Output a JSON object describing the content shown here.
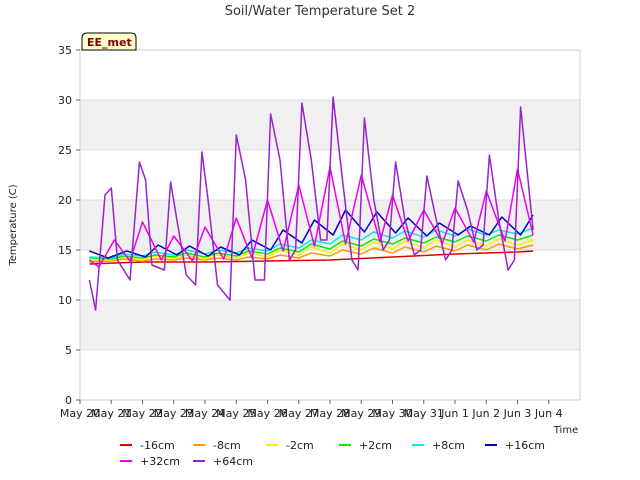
{
  "chart_data": {
    "type": "line",
    "title": "Soil/Water Temperature Set 2",
    "xlabel": "Time",
    "ylabel": "Temperature (C)",
    "ylim": [
      0,
      35
    ],
    "yticks": [
      0,
      5,
      10,
      15,
      20,
      25,
      30,
      35
    ],
    "xticks": [
      "May 20",
      "May 21",
      "May 22",
      "May 23",
      "May 24",
      "May 25",
      "May 26",
      "May 27",
      "May 28",
      "May 29",
      "May 30",
      "May 31",
      "Jun 1",
      "Jun 2",
      "Jun 3",
      "Jun 4"
    ],
    "badge": "EE_met",
    "legend_position": "bottom",
    "grid_bands": true,
    "series": [
      {
        "name": "-16cm",
        "color": "#dd0000",
        "x": [
          0.3,
          2,
          4,
          6,
          8,
          10,
          12,
          14,
          14.5
        ],
        "y": [
          13.6,
          13.8,
          13.8,
          13.9,
          14.0,
          14.3,
          14.6,
          14.8,
          14.9
        ]
      },
      {
        "name": "-8cm",
        "color": "#ff9900",
        "x": [
          0.3,
          1,
          1.4,
          2,
          2.4,
          3,
          3.4,
          4,
          4.4,
          5,
          5.4,
          6,
          6.4,
          7,
          7.4,
          8,
          8.4,
          9,
          9.4,
          10,
          10.4,
          11,
          11.4,
          12,
          12.4,
          13,
          13.4,
          14,
          14.5
        ],
        "y": [
          13.8,
          13.9,
          14.1,
          13.9,
          14.1,
          14.0,
          14.2,
          14.0,
          14.2,
          14.0,
          14.3,
          14.1,
          14.5,
          14.2,
          14.7,
          14.4,
          15.0,
          14.6,
          15.2,
          14.7,
          15.3,
          14.8,
          15.4,
          14.9,
          15.5,
          15.0,
          15.6,
          15.1,
          15.5
        ]
      },
      {
        "name": "-2cm",
        "color": "#ffee00",
        "x": [
          0.3,
          1,
          1.4,
          2,
          2.4,
          3,
          3.4,
          4,
          4.4,
          5,
          5.4,
          6,
          6.4,
          7,
          7.4,
          8,
          8.4,
          9,
          9.4,
          10,
          10.4,
          11,
          11.4,
          12,
          12.4,
          13,
          13.4,
          14,
          14.5
        ],
        "y": [
          14.0,
          14.0,
          14.3,
          14.0,
          14.4,
          14.1,
          14.5,
          14.1,
          14.5,
          14.2,
          14.7,
          14.3,
          15.0,
          14.5,
          15.3,
          14.7,
          15.6,
          15.0,
          15.8,
          15.1,
          15.9,
          15.2,
          16.0,
          15.3,
          16.0,
          15.4,
          16.1,
          15.5,
          16.0
        ]
      },
      {
        "name": "+2cm",
        "color": "#00ee00",
        "x": [
          0.3,
          1,
          1.4,
          2,
          2.4,
          3,
          3.4,
          4,
          4.4,
          5,
          5.4,
          6,
          6.4,
          7,
          7.4,
          8,
          8.4,
          9,
          9.4,
          10,
          10.4,
          11,
          11.4,
          12,
          12.4,
          13,
          13.4,
          14,
          14.5
        ],
        "y": [
          14.2,
          14.1,
          14.4,
          14.2,
          14.5,
          14.3,
          14.7,
          14.3,
          14.7,
          14.4,
          14.9,
          14.6,
          15.2,
          14.8,
          15.6,
          15.1,
          15.9,
          15.4,
          16.1,
          15.6,
          16.2,
          15.7,
          16.3,
          15.8,
          16.4,
          15.9,
          16.5,
          16.0,
          16.5
        ]
      },
      {
        "name": "+8cm",
        "color": "#00eeee",
        "x": [
          0.3,
          1,
          1.4,
          2,
          2.4,
          3,
          3.4,
          4,
          4.4,
          5,
          5.4,
          6,
          6.4,
          7,
          7.4,
          8,
          8.4,
          9,
          9.4,
          10,
          10.4,
          11,
          11.4,
          12,
          12.4,
          13,
          13.4,
          14,
          14.5
        ],
        "y": [
          14.3,
          14.2,
          14.6,
          14.4,
          14.8,
          14.5,
          15.0,
          14.6,
          15.0,
          14.7,
          15.2,
          14.9,
          15.6,
          15.2,
          16.0,
          15.6,
          16.5,
          16.0,
          16.8,
          16.2,
          16.9,
          16.3,
          17.0,
          16.4,
          17.1,
          16.5,
          17.0,
          16.6,
          17.2
        ]
      },
      {
        "name": "+16cm",
        "color": "#0000cc",
        "x": [
          0.3,
          0.9,
          1.5,
          2.1,
          2.5,
          3.1,
          3.5,
          4.1,
          4.5,
          5.1,
          5.5,
          6.1,
          6.5,
          7.1,
          7.5,
          8.1,
          8.5,
          9.1,
          9.5,
          10.1,
          10.5,
          11.1,
          11.5,
          12.1,
          12.5,
          13.1,
          13.5,
          14.1,
          14.5
        ],
        "y": [
          14.9,
          14.2,
          14.9,
          14.3,
          15.5,
          14.5,
          15.4,
          14.4,
          15.3,
          14.5,
          16.0,
          15.0,
          17.0,
          15.7,
          18.0,
          16.5,
          19.0,
          16.8,
          18.8,
          16.7,
          18.2,
          16.4,
          17.7,
          16.5,
          17.4,
          16.5,
          18.3,
          16.5,
          18.5
        ]
      },
      {
        "name": "+32cm",
        "color": "#ee00ee",
        "x": [
          0.3,
          0.6,
          1.1,
          1.6,
          2.0,
          2.6,
          3.0,
          3.6,
          4.0,
          4.6,
          5.0,
          5.5,
          6.0,
          6.5,
          7.0,
          7.5,
          8.0,
          8.5,
          9.0,
          9.6,
          10.0,
          10.5,
          11.0,
          11.6,
          12.0,
          12.6,
          13.0,
          13.6,
          14.0,
          14.5
        ],
        "y": [
          14.0,
          13.3,
          16.0,
          13.9,
          17.8,
          14.0,
          16.4,
          13.9,
          17.3,
          14.1,
          18.2,
          14.2,
          20.0,
          14.9,
          21.5,
          15.4,
          23.3,
          15.6,
          22.5,
          15.8,
          20.5,
          15.9,
          19.0,
          15.7,
          19.2,
          15.8,
          20.9,
          15.9,
          23.1,
          16.5
        ]
      },
      {
        "name": "+64cm",
        "color": "#9922cc",
        "x": [
          0.3,
          0.5,
          0.8,
          1.0,
          1.2,
          1.6,
          1.9,
          2.1,
          2.3,
          2.7,
          2.9,
          3.1,
          3.4,
          3.7,
          3.9,
          4.1,
          4.4,
          4.8,
          5.0,
          5.3,
          5.6,
          5.9,
          6.1,
          6.4,
          6.7,
          6.9,
          7.1,
          7.4,
          7.7,
          7.9,
          8.1,
          8.4,
          8.7,
          8.9,
          9.1,
          9.4,
          9.7,
          9.9,
          10.1,
          10.4,
          10.7,
          10.9,
          11.1,
          11.4,
          11.7,
          11.9,
          12.1,
          12.4,
          12.7,
          12.9,
          13.1,
          13.4,
          13.7,
          13.9,
          14.1,
          14.5
        ],
        "y": [
          12.0,
          9.0,
          20.5,
          21.2,
          14.0,
          12.0,
          23.8,
          22.0,
          13.5,
          13.0,
          21.8,
          18.0,
          12.5,
          11.5,
          24.8,
          20.0,
          11.5,
          10.0,
          26.5,
          22.0,
          12.0,
          12.0,
          28.6,
          24.0,
          14.0,
          15.0,
          29.7,
          24.0,
          16.0,
          16.0,
          30.3,
          22.0,
          14.0,
          13.0,
          28.2,
          20.0,
          15.0,
          16.0,
          23.8,
          18.0,
          14.5,
          15.0,
          22.4,
          18.0,
          14.0,
          15.0,
          21.9,
          19.0,
          15.0,
          15.5,
          24.5,
          18.0,
          13.0,
          14.0,
          29.3,
          17.0
        ]
      }
    ]
  }
}
